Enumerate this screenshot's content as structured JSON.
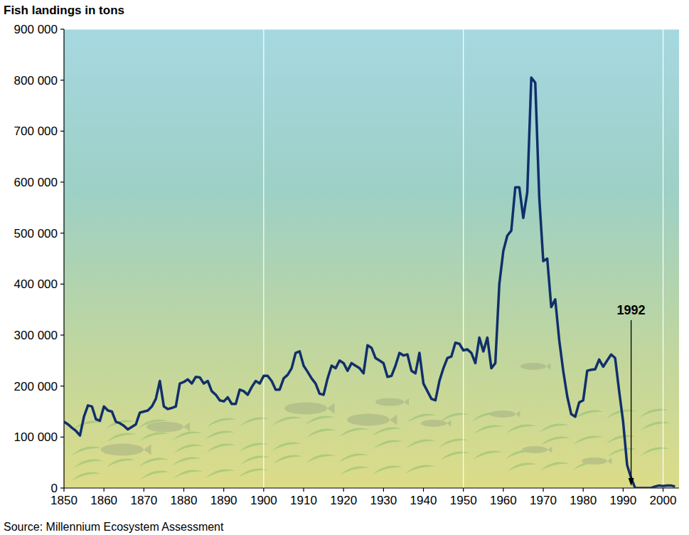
{
  "chart_data": {
    "type": "line",
    "title": "Fish landings in tons",
    "subtitle": "Source: Millennium Ecosystem Assessment",
    "x": [
      1850,
      1851,
      1852,
      1853,
      1854,
      1855,
      1856,
      1857,
      1858,
      1859,
      1860,
      1861,
      1862,
      1863,
      1864,
      1865,
      1866,
      1867,
      1868,
      1869,
      1870,
      1871,
      1872,
      1873,
      1874,
      1875,
      1876,
      1877,
      1878,
      1879,
      1880,
      1881,
      1882,
      1883,
      1884,
      1885,
      1886,
      1887,
      1888,
      1889,
      1890,
      1891,
      1892,
      1893,
      1894,
      1895,
      1896,
      1897,
      1898,
      1899,
      1900,
      1901,
      1902,
      1903,
      1904,
      1905,
      1906,
      1907,
      1908,
      1909,
      1910,
      1911,
      1912,
      1913,
      1914,
      1915,
      1916,
      1917,
      1918,
      1919,
      1920,
      1921,
      1922,
      1923,
      1924,
      1925,
      1926,
      1927,
      1928,
      1929,
      1930,
      1931,
      1932,
      1933,
      1934,
      1935,
      1936,
      1937,
      1938,
      1939,
      1940,
      1941,
      1942,
      1943,
      1944,
      1945,
      1946,
      1947,
      1948,
      1949,
      1950,
      1951,
      1952,
      1953,
      1954,
      1955,
      1956,
      1957,
      1958,
      1959,
      1960,
      1961,
      1962,
      1963,
      1964,
      1965,
      1966,
      1967,
      1968,
      1969,
      1970,
      1971,
      1972,
      1973,
      1974,
      1975,
      1976,
      1977,
      1978,
      1979,
      1980,
      1981,
      1982,
      1983,
      1984,
      1985,
      1986,
      1987,
      1988,
      1989,
      1990,
      1991,
      1992,
      1993,
      1994,
      1995,
      1996,
      1997,
      1998,
      1999,
      2000,
      2001,
      2002,
      2003
    ],
    "values": [
      130000,
      125000,
      118000,
      112000,
      103000,
      140000,
      162000,
      160000,
      135000,
      132000,
      160000,
      152000,
      150000,
      130000,
      127000,
      122000,
      115000,
      120000,
      125000,
      148000,
      150000,
      152000,
      160000,
      175000,
      210000,
      160000,
      155000,
      157000,
      160000,
      205000,
      208000,
      213000,
      205000,
      218000,
      217000,
      205000,
      210000,
      190000,
      183000,
      172000,
      170000,
      178000,
      165000,
      165000,
      193000,
      190000,
      183000,
      198000,
      210000,
      205000,
      220000,
      220000,
      210000,
      193000,
      193000,
      215000,
      222000,
      235000,
      265000,
      268000,
      240000,
      228000,
      215000,
      205000,
      185000,
      183000,
      215000,
      240000,
      235000,
      250000,
      245000,
      230000,
      245000,
      240000,
      235000,
      225000,
      280000,
      275000,
      255000,
      250000,
      245000,
      218000,
      220000,
      240000,
      265000,
      260000,
      262000,
      230000,
      225000,
      265000,
      205000,
      190000,
      175000,
      172000,
      210000,
      235000,
      255000,
      258000,
      285000,
      283000,
      270000,
      272000,
      265000,
      245000,
      295000,
      268000,
      295000,
      235000,
      245000,
      400000,
      465000,
      495000,
      505000,
      590000,
      590000,
      530000,
      580000,
      805000,
      795000,
      570000,
      445000,
      450000,
      355000,
      370000,
      290000,
      230000,
      180000,
      145000,
      140000,
      168000,
      172000,
      230000,
      232000,
      233000,
      252000,
      238000,
      250000,
      262000,
      255000,
      190000,
      130000,
      45000,
      20000,
      0,
      0,
      0,
      0,
      0,
      3000,
      5000,
      4000,
      5000,
      5000,
      3000
    ],
    "color": "#102f6b",
    "xlim": [
      1850,
      2004
    ],
    "xticks": [
      1850,
      1860,
      1870,
      1880,
      1890,
      1900,
      1910,
      1920,
      1930,
      1940,
      1950,
      1960,
      1970,
      1980,
      1990,
      2000
    ],
    "ylim": [
      0,
      900000
    ],
    "yticks": [
      0,
      {
        "value": 100000,
        "label": "100 000"
      },
      {
        "value": 200000,
        "label": "200 000"
      },
      {
        "value": 300000,
        "label": "300 000"
      },
      {
        "value": 400000,
        "label": "400 000"
      },
      {
        "value": 500000,
        "label": "500 000"
      },
      {
        "value": 600000,
        "label": "600 000"
      },
      {
        "value": 700000,
        "label": "700 000"
      },
      {
        "value": 800000,
        "label": "800 000"
      },
      {
        "value": 900000,
        "label": "900 000"
      }
    ],
    "grid": true,
    "annotations": [
      {
        "text": "1992",
        "x": 1992,
        "y": 0
      }
    ]
  }
}
